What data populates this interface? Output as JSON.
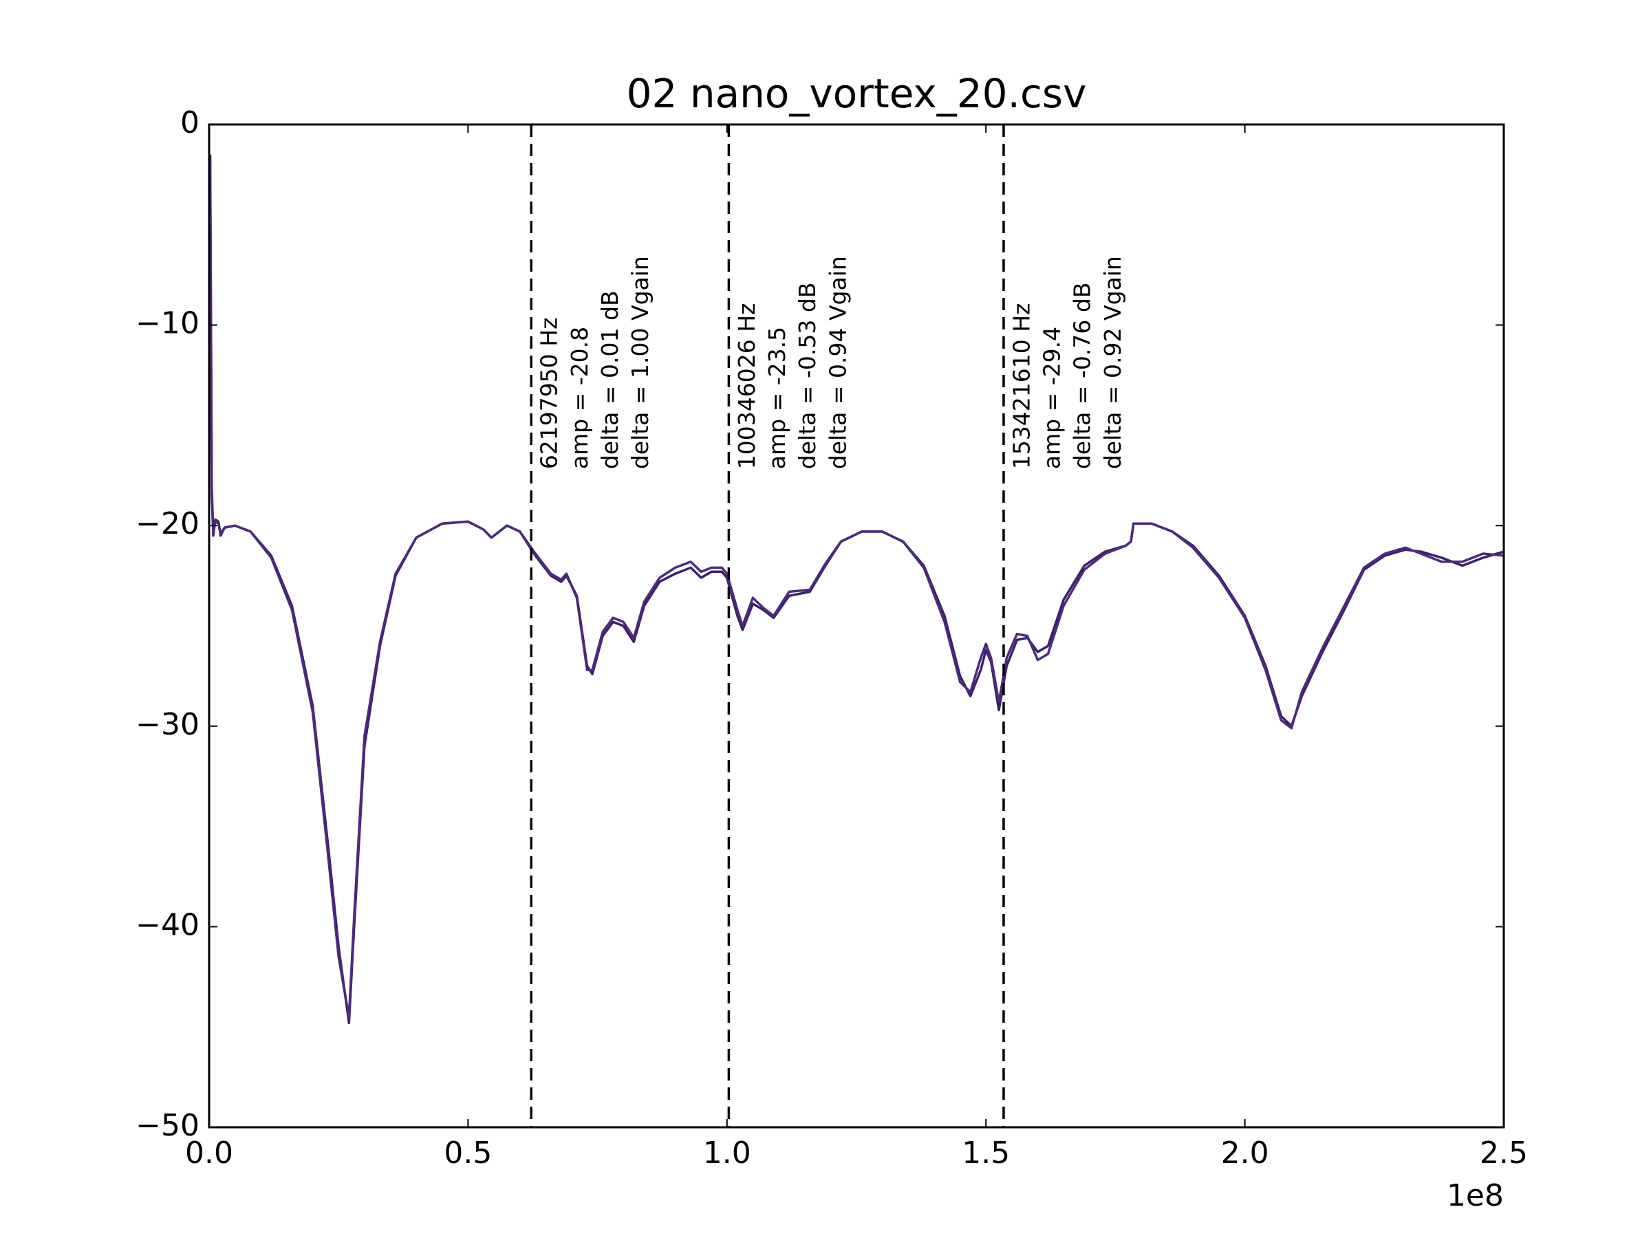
{
  "chart_data": {
    "type": "line",
    "title": "02 nano_vortex_20.csv",
    "x_offset_label": "1e8",
    "xlim": [
      0,
      2.5
    ],
    "xticks": [
      {
        "value": 0,
        "label": "0.0"
      },
      0.5,
      {
        "value": 1,
        "label": "1.0"
      },
      1.5,
      {
        "value": 2,
        "label": "2.0"
      },
      2.5
    ],
    "ylim": [
      -50,
      0
    ],
    "yticks": [
      {
        "value": -50,
        "label": "−50"
      },
      {
        "value": -40,
        "label": "−40"
      },
      {
        "value": -30,
        "label": "−30"
      },
      {
        "value": -20,
        "label": "−20"
      },
      {
        "value": -10,
        "label": "−10"
      },
      0
    ],
    "x": [
      0.002,
      0.005,
      0.008,
      0.012,
      0.018,
      0.022,
      0.03,
      0.05,
      0.08,
      0.12,
      0.16,
      0.2,
      0.23,
      0.25,
      0.27,
      0.28,
      0.3,
      0.33,
      0.36,
      0.4,
      0.45,
      0.5,
      0.53,
      0.545,
      0.575,
      0.6,
      0.63,
      0.66,
      0.68,
      0.69,
      0.71,
      0.73,
      0.74,
      0.76,
      0.78,
      0.8,
      0.82,
      0.84,
      0.87,
      0.9,
      0.93,
      0.95,
      0.97,
      0.99,
      1.0,
      1.02,
      1.03,
      1.05,
      1.07,
      1.09,
      1.12,
      1.16,
      1.19,
      1.22,
      1.26,
      1.3,
      1.34,
      1.38,
      1.42,
      1.45,
      1.47,
      1.49,
      1.5,
      1.51,
      1.525,
      1.54,
      1.56,
      1.58,
      1.6,
      1.62,
      1.65,
      1.69,
      1.73,
      1.77,
      1.78,
      1.785,
      1.82,
      1.86,
      1.9,
      1.95,
      2.0,
      2.04,
      2.07,
      2.09,
      2.11,
      2.15,
      2.19,
      2.23,
      2.27,
      2.31,
      2.34,
      2.38,
      2.42,
      2.46,
      2.5
    ],
    "series": [
      {
        "color": "#3d1f6b",
        "values": [
          -1.5,
          -18,
          -20.5,
          -19.7,
          -19.8,
          -20.5,
          -20.1,
          -20,
          -20.3,
          -21.5,
          -24,
          -29,
          -36,
          -41,
          -44.8,
          -40,
          -31,
          -26,
          -22.5,
          -20.6,
          -19.9,
          -19.8,
          -20.2,
          -20.6,
          -20,
          -20.3,
          -21.5,
          -22.5,
          -22.8,
          -22.5,
          -23.5,
          -27,
          -27.4,
          -25.5,
          -24.8,
          -25,
          -25.8,
          -24,
          -22.8,
          -22.4,
          -22.1,
          -22.6,
          -22.3,
          -22.3,
          -22.6,
          -24.5,
          -25.2,
          -23.9,
          -24.2,
          -24.6,
          -23.5,
          -23.3,
          -22,
          -20.8,
          -20.3,
          -20.3,
          -20.8,
          -22,
          -24.5,
          -27.5,
          -28.5,
          -27.2,
          -26.2,
          -26.8,
          -29.2,
          -27,
          -25.7,
          -25.6,
          -26.3,
          -26,
          -23.7,
          -22,
          -21.3,
          -21,
          -20.8,
          -19.9,
          -19.9,
          -20.3,
          -21,
          -22.5,
          -24.5,
          -27,
          -29.5,
          -30,
          -28.5,
          -26.3,
          -24.3,
          -22.2,
          -21.5,
          -21.2,
          -21.3,
          -21.6,
          -22,
          -21.6,
          -21.3
        ]
      },
      {
        "color": "#4b2a7e",
        "values": [
          -1.8,
          -18.5,
          -20.3,
          -19.8,
          -19.9,
          -20.4,
          -20.1,
          -20,
          -20.3,
          -21.6,
          -24.2,
          -29.3,
          -36.5,
          -41.5,
          -44.5,
          -39.5,
          -30.5,
          -25.8,
          -22.4,
          -20.6,
          -19.9,
          -19.8,
          -20.2,
          -20.6,
          -20,
          -20.3,
          -21.4,
          -22.4,
          -22.7,
          -22.4,
          -23.6,
          -27.2,
          -27.2,
          -25.3,
          -24.6,
          -24.8,
          -25.6,
          -23.8,
          -22.6,
          -22.1,
          -21.8,
          -22.3,
          -22.1,
          -22.1,
          -22.4,
          -24.2,
          -25,
          -23.6,
          -24.1,
          -24.5,
          -23.3,
          -23.2,
          -21.9,
          -20.8,
          -20.3,
          -20.3,
          -20.8,
          -22.1,
          -24.8,
          -27.8,
          -28.3,
          -26.6,
          -25.9,
          -26.6,
          -28.8,
          -26.6,
          -25.4,
          -25.5,
          -26.7,
          -26.4,
          -24,
          -22.2,
          -21.4,
          -21,
          -20.8,
          -19.9,
          -19.9,
          -20.3,
          -21.1,
          -22.6,
          -24.6,
          -27.2,
          -29.7,
          -30.1,
          -28.3,
          -26.1,
          -24.1,
          -22.1,
          -21.4,
          -21.1,
          -21.4,
          -21.8,
          -21.8,
          -21.4,
          -21.5
        ]
      }
    ],
    "annotations": [
      {
        "x": 0.6219795,
        "lines": [
          "62197950 Hz",
          "amp = -20.8",
          "delta = 0.01 dB",
          "delta = 1.00 Vgain"
        ]
      },
      {
        "x": 1.00346026,
        "lines": [
          "100346026 Hz",
          "amp = -23.5",
          "delta = -0.53 dB",
          "delta = 0.94 Vgain"
        ]
      },
      {
        "x": 1.5342161,
        "lines": [
          "153421610 Hz",
          "amp = -29.4",
          "delta = -0.76 dB",
          "delta = 0.92 Vgain"
        ]
      }
    ]
  }
}
